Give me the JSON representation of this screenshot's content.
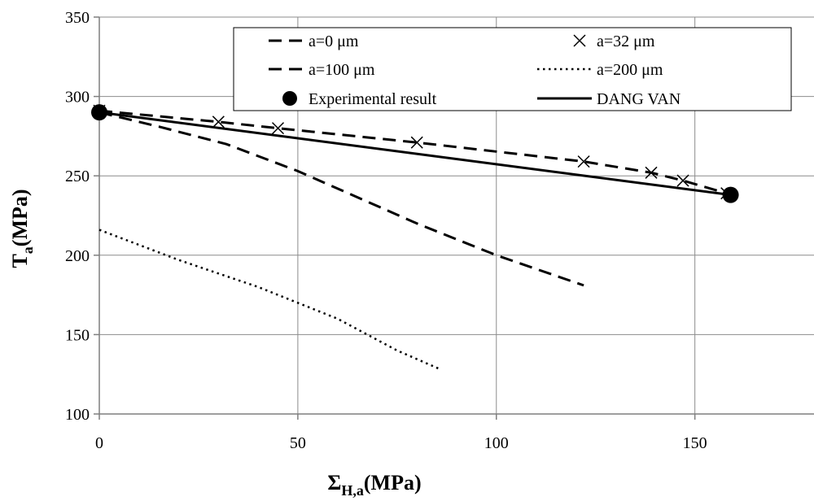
{
  "chart_data": {
    "type": "line",
    "xlabel": {
      "main": "Σ",
      "sub": "H,a",
      "rest": "(MPa)"
    },
    "ylabel": {
      "main": "T",
      "sub": "a",
      "rest": "(MPa)"
    },
    "xlim": [
      0,
      180
    ],
    "ylim": [
      100,
      350
    ],
    "x_ticks": [
      0,
      50,
      100,
      150
    ],
    "y_ticks": [
      100,
      150,
      200,
      250,
      300,
      350
    ],
    "grid": true,
    "legend_position": "top-right",
    "series": [
      {
        "name": "a=0 μm",
        "style": "dash",
        "marker": "none",
        "x": [
          0,
          30,
          45,
          80,
          122,
          139,
          147,
          158
        ],
        "y": [
          291,
          284,
          280,
          271,
          259,
          252,
          247,
          239
        ]
      },
      {
        "name": "a=32 μm",
        "style": "none",
        "marker": "x",
        "x": [
          0,
          30,
          45,
          80,
          122,
          139,
          147,
          158
        ],
        "y": [
          291,
          284,
          280,
          271,
          259,
          252,
          247,
          239
        ]
      },
      {
        "name": "a=100 μm",
        "style": "dash",
        "marker": "none",
        "x": [
          0,
          15,
          32,
          50,
          80,
          100,
          122
        ],
        "y": [
          290,
          281,
          270,
          253,
          220,
          200,
          181
        ]
      },
      {
        "name": "a=200 μm",
        "style": "dot",
        "marker": "none",
        "x": [
          0,
          20,
          40,
          60,
          75,
          86
        ],
        "y": [
          216,
          197,
          180,
          160,
          140,
          128
        ]
      },
      {
        "name": "Experimental result",
        "style": "none",
        "marker": "circle",
        "x": [
          0,
          159
        ],
        "y": [
          290,
          238
        ]
      },
      {
        "name": "DANG VAN",
        "style": "solid",
        "marker": "none",
        "x": [
          0,
          159
        ],
        "y": [
          290,
          238
        ]
      }
    ]
  }
}
